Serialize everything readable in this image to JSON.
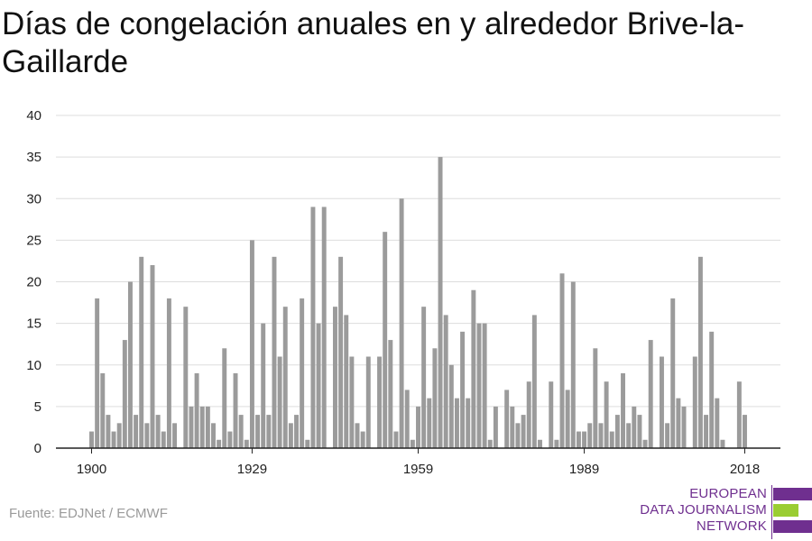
{
  "title": "Días de congelación anuales en y alrededor Brive-la-Gaillarde",
  "source": "Fuente: EDJNet / ECMWF",
  "logo": {
    "line1": "EUROPEAN",
    "line2": "DATA JOURNALISM",
    "line3": "NETWORK",
    "colors": {
      "purple": "#6f2f8f",
      "green": "#9acd32"
    }
  },
  "chart_data": {
    "type": "bar",
    "title": "Días de congelación anuales en y alrededor Brive-la-Gaillarde",
    "xlabel": "",
    "ylabel": "",
    "ylim": [
      0,
      40
    ],
    "y_ticks": [
      0,
      5,
      10,
      15,
      20,
      25,
      30,
      35,
      40
    ],
    "x_ticks": [
      1900,
      1929,
      1959,
      1989,
      2018
    ],
    "grid": true,
    "bar_color": "#9b9b9b",
    "x": [
      1900,
      1901,
      1902,
      1903,
      1904,
      1905,
      1906,
      1907,
      1908,
      1909,
      1910,
      1911,
      1912,
      1913,
      1914,
      1915,
      1916,
      1917,
      1918,
      1919,
      1920,
      1921,
      1922,
      1923,
      1924,
      1925,
      1926,
      1927,
      1928,
      1929,
      1930,
      1931,
      1932,
      1933,
      1934,
      1935,
      1936,
      1937,
      1938,
      1939,
      1940,
      1941,
      1942,
      1943,
      1944,
      1945,
      1946,
      1947,
      1948,
      1949,
      1950,
      1951,
      1952,
      1953,
      1954,
      1955,
      1956,
      1957,
      1958,
      1959,
      1960,
      1961,
      1962,
      1963,
      1964,
      1965,
      1966,
      1967,
      1968,
      1969,
      1970,
      1971,
      1972,
      1973,
      1974,
      1975,
      1976,
      1977,
      1978,
      1979,
      1980,
      1981,
      1982,
      1983,
      1984,
      1985,
      1986,
      1987,
      1988,
      1989,
      1990,
      1991,
      1992,
      1993,
      1994,
      1995,
      1996,
      1997,
      1998,
      1999,
      2000,
      2001,
      2002,
      2003,
      2004,
      2005,
      2006,
      2007,
      2008,
      2009,
      2010,
      2011,
      2012,
      2013,
      2014,
      2015,
      2016,
      2017,
      2018
    ],
    "values": [
      2,
      18,
      9,
      4,
      2,
      3,
      13,
      20,
      4,
      23,
      3,
      22,
      4,
      2,
      18,
      3,
      0,
      17,
      5,
      9,
      5,
      5,
      3,
      1,
      12,
      2,
      9,
      4,
      1,
      25,
      4,
      15,
      4,
      23,
      11,
      17,
      3,
      4,
      18,
      1,
      29,
      15,
      29,
      0,
      17,
      23,
      16,
      11,
      3,
      2,
      11,
      0,
      11,
      26,
      13,
      2,
      30,
      7,
      1,
      5,
      17,
      6,
      12,
      35,
      16,
      10,
      6,
      14,
      6,
      19,
      15,
      15,
      1,
      5,
      0,
      7,
      5,
      3,
      4,
      8,
      16,
      1,
      0,
      8,
      1,
      21,
      7,
      20,
      2,
      2,
      3,
      12,
      3,
      8,
      2,
      4,
      9,
      3,
      5,
      4,
      1,
      13,
      0,
      11,
      3,
      18,
      6,
      5,
      0,
      11,
      23,
      4,
      14,
      6,
      1,
      0,
      0,
      8,
      4
    ]
  }
}
